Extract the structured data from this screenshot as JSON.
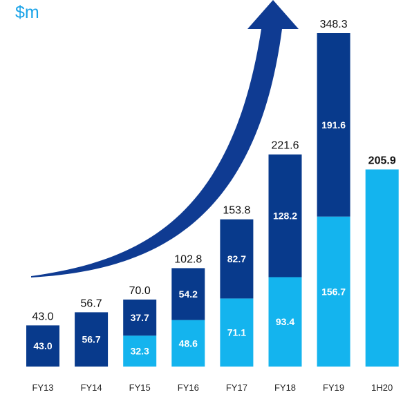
{
  "unit_label": "$m",
  "colors": {
    "dark": "#083a8c",
    "light": "#14b4ee",
    "arrow": "#0f3b92"
  },
  "chart_data": {
    "type": "bar",
    "stacked": true,
    "categories": [
      "FY13",
      "FY14",
      "FY15",
      "FY16",
      "FY17",
      "FY18",
      "FY19",
      "1H20"
    ],
    "series": [
      {
        "color": "#14b4ee",
        "values": [
          null,
          null,
          32.3,
          48.6,
          71.1,
          93.4,
          156.7,
          205.9
        ]
      },
      {
        "color": "#083a8c",
        "values": [
          43.0,
          56.7,
          37.7,
          54.2,
          82.7,
          128.2,
          191.6,
          null
        ]
      }
    ],
    "totals": [
      "43.0",
      "56.7",
      "70.0",
      "102.8",
      "153.8",
      "221.6",
      "348.3",
      "205.9"
    ],
    "segment_labels": [
      [
        "",
        "43.0"
      ],
      [
        "",
        "56.7"
      ],
      [
        "32.3",
        "37.7"
      ],
      [
        "48.6",
        "54.2"
      ],
      [
        "71.1",
        "82.7"
      ],
      [
        "93.4",
        "128.2"
      ],
      [
        "156.7",
        "191.6"
      ],
      [
        "",
        ""
      ]
    ],
    "ylim": [
      0,
      348.3
    ],
    "grid": false,
    "legend": "none",
    "annotation": "growth-arrow"
  }
}
